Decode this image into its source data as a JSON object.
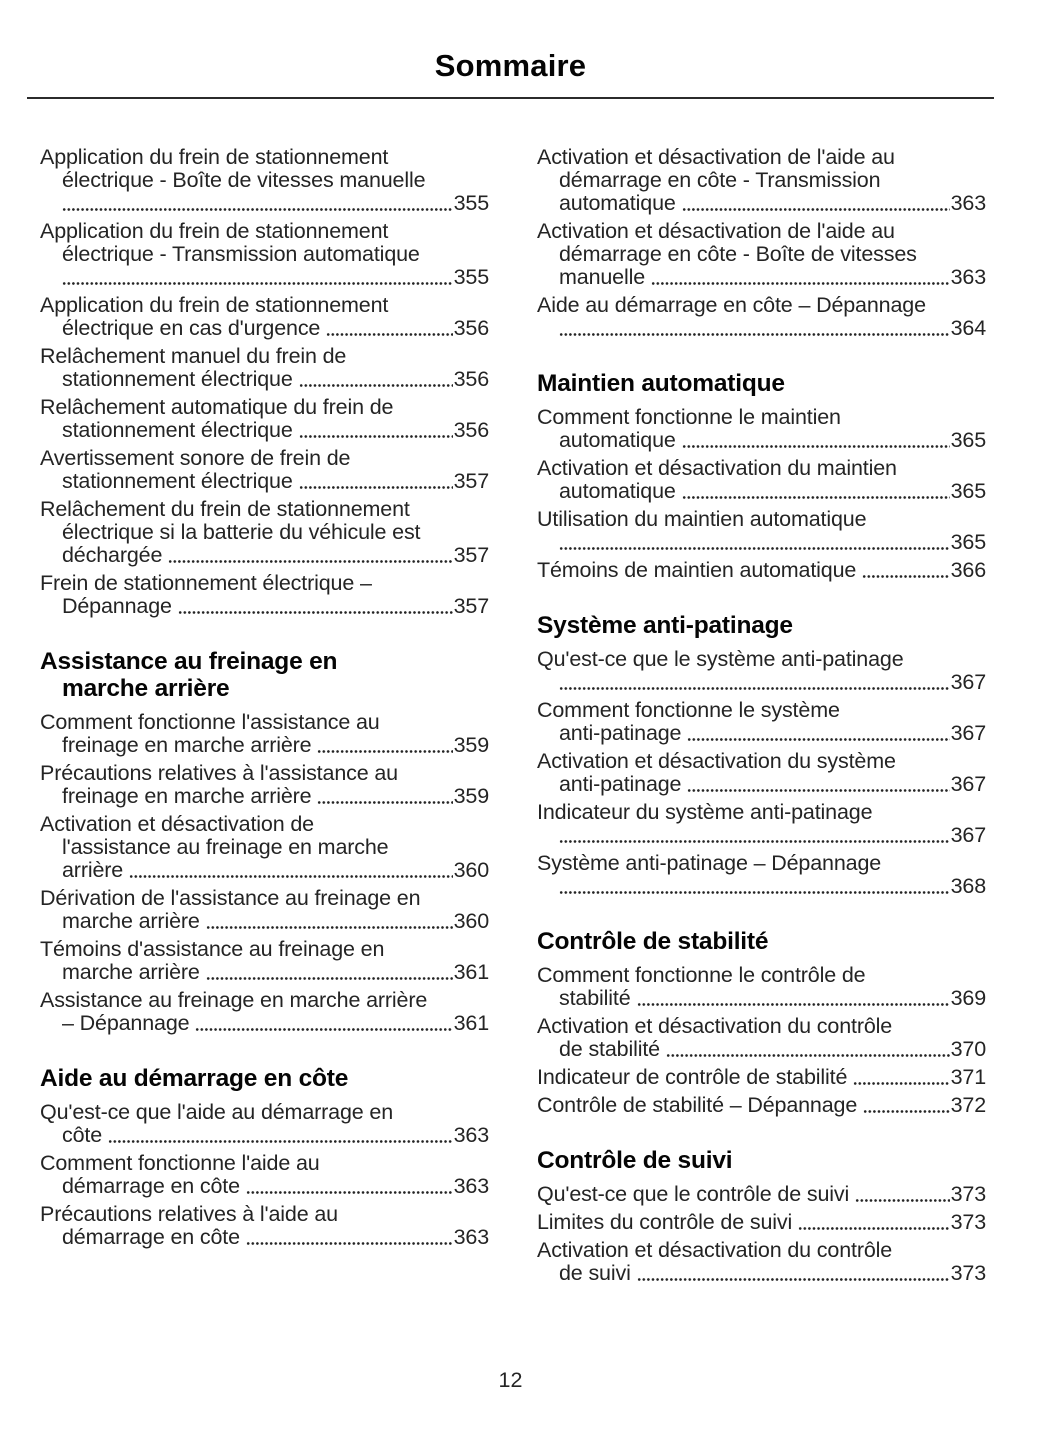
{
  "colors": {
    "ink": "#242424",
    "heading_ink": "#050505"
  },
  "header": {
    "title": "Sommaire"
  },
  "footer": {
    "page_number": "12"
  },
  "toc": {
    "left_column": [
      {
        "type": "entry",
        "lines": [
          "Application du frein de stationnement",
          "électrique - Boîte de vitesses manuelle"
        ],
        "tail": "",
        "page": "355"
      },
      {
        "type": "entry",
        "lines": [
          "Application du frein de stationnement",
          "électrique - Transmission automatique"
        ],
        "tail": "",
        "page": "355"
      },
      {
        "type": "entry",
        "lines": [
          "Application du frein de stationnement"
        ],
        "tail": "électrique en cas d'urgence",
        "page": "356"
      },
      {
        "type": "entry",
        "lines": [
          "Relâchement manuel du frein de"
        ],
        "tail": "stationnement électrique",
        "page": "356"
      },
      {
        "type": "entry",
        "lines": [
          "Relâchement automatique du frein de"
        ],
        "tail": "stationnement électrique",
        "page": "356"
      },
      {
        "type": "entry",
        "lines": [
          "Avertissement sonore de frein de"
        ],
        "tail": "stationnement électrique",
        "page": "357"
      },
      {
        "type": "entry",
        "lines": [
          "Relâchement du frein de stationnement",
          "électrique si la batterie du véhicule est"
        ],
        "tail": "déchargée",
        "page": "357"
      },
      {
        "type": "entry",
        "lines": [
          "Frein de stationnement électrique –"
        ],
        "tail": "Dépannage",
        "page": "357"
      },
      {
        "type": "heading",
        "lines": [
          "Assistance au freinage en",
          "marche arrière"
        ]
      },
      {
        "type": "entry",
        "lines": [
          "Comment fonctionne l'assistance au"
        ],
        "tail": "freinage en marche arrière",
        "page": "359"
      },
      {
        "type": "entry",
        "lines": [
          "Précautions relatives à l'assistance au"
        ],
        "tail": "freinage en marche arrière",
        "page": "359"
      },
      {
        "type": "entry",
        "lines": [
          "Activation et désactivation de",
          "l'assistance au freinage en marche"
        ],
        "tail": "arrière",
        "page": "360"
      },
      {
        "type": "entry",
        "lines": [
          "Dérivation de l'assistance au freinage en"
        ],
        "tail": "marche arrière",
        "page": "360"
      },
      {
        "type": "entry",
        "lines": [
          "Témoins d'assistance au freinage en"
        ],
        "tail": "marche arrière",
        "page": "361"
      },
      {
        "type": "entry",
        "lines": [
          "Assistance au freinage en marche arrière"
        ],
        "tail": "– Dépannage",
        "page": "361"
      },
      {
        "type": "heading",
        "lines": [
          "Aide au démarrage en côte"
        ]
      },
      {
        "type": "entry",
        "lines": [
          "Qu'est-ce que l'aide au démarrage en"
        ],
        "tail": "côte",
        "page": "363"
      },
      {
        "type": "entry",
        "lines": [
          "Comment fonctionne l'aide au"
        ],
        "tail": "démarrage en côte",
        "page": "363"
      },
      {
        "type": "entry",
        "lines": [
          "Précautions relatives à l'aide au"
        ],
        "tail": "démarrage en côte",
        "page": "363"
      }
    ],
    "right_column": [
      {
        "type": "entry",
        "lines": [
          "Activation et désactivation de l'aide au",
          "démarrage en côte - Transmission"
        ],
        "tail": "automatique",
        "page": "363"
      },
      {
        "type": "entry",
        "lines": [
          "Activation et désactivation de l'aide au",
          "démarrage en côte - Boîte de vitesses"
        ],
        "tail": "manuelle",
        "page": "363"
      },
      {
        "type": "entry",
        "lines": [
          "Aide au démarrage en côte – Dépannage"
        ],
        "tail": "",
        "page": "364"
      },
      {
        "type": "heading",
        "lines": [
          "Maintien automatique"
        ]
      },
      {
        "type": "entry",
        "lines": [
          "Comment fonctionne le maintien"
        ],
        "tail": "automatique",
        "page": "365"
      },
      {
        "type": "entry",
        "lines": [
          "Activation et désactivation du maintien"
        ],
        "tail": "automatique",
        "page": "365"
      },
      {
        "type": "entry",
        "lines": [
          "Utilisation du maintien automatique"
        ],
        "tail": "",
        "page": "365"
      },
      {
        "type": "entry",
        "lines": [],
        "tail": "Témoins de maintien automatique",
        "page": "366"
      },
      {
        "type": "heading",
        "lines": [
          "Système anti-patinage"
        ]
      },
      {
        "type": "entry",
        "lines": [
          "Qu'est-ce que le système anti-patinage"
        ],
        "tail": "",
        "page": "367"
      },
      {
        "type": "entry",
        "lines": [
          "Comment fonctionne le système"
        ],
        "tail": "anti-patinage",
        "page": "367"
      },
      {
        "type": "entry",
        "lines": [
          "Activation et désactivation du système"
        ],
        "tail": "anti-patinage",
        "page": "367"
      },
      {
        "type": "entry",
        "lines": [
          "Indicateur du système anti-patinage"
        ],
        "tail": "",
        "page": "367"
      },
      {
        "type": "entry",
        "lines": [
          "Système anti-patinage – Dépannage"
        ],
        "tail": "",
        "page": "368"
      },
      {
        "type": "heading",
        "lines": [
          "Contrôle de stabilité"
        ]
      },
      {
        "type": "entry",
        "lines": [
          "Comment fonctionne le contrôle de"
        ],
        "tail": "stabilité",
        "page": "369"
      },
      {
        "type": "entry",
        "lines": [
          "Activation et désactivation du contrôle"
        ],
        "tail": "de stabilité",
        "page": "370"
      },
      {
        "type": "entry",
        "lines": [],
        "tail": "Indicateur de contrôle de stabilité",
        "page": "371"
      },
      {
        "type": "entry",
        "lines": [],
        "tail": "Contrôle de stabilité – Dépannage",
        "page": "372"
      },
      {
        "type": "heading",
        "lines": [
          "Contrôle de suivi"
        ]
      },
      {
        "type": "entry",
        "lines": [],
        "tail": "Qu'est-ce que le contrôle de suivi",
        "page": "373"
      },
      {
        "type": "entry",
        "lines": [],
        "tail": "Limites du contrôle de suivi",
        "page": "373"
      },
      {
        "type": "entry",
        "lines": [
          "Activation et désactivation du contrôle"
        ],
        "tail": "de suivi",
        "page": "373"
      }
    ]
  }
}
